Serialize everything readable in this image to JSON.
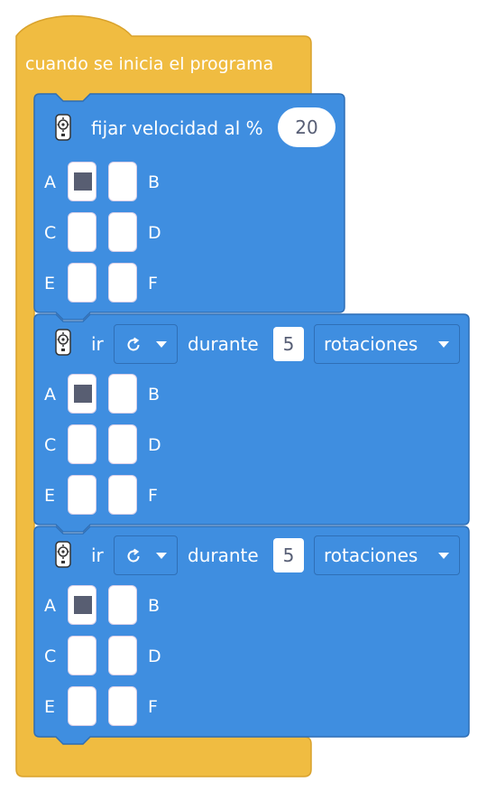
{
  "hat": {
    "label": "cuando se inicia el programa"
  },
  "blocks": [
    {
      "text_before": "fijar velocidad al %",
      "value": "20",
      "ports": [
        [
          "A",
          "B"
        ],
        [
          "C",
          "D"
        ],
        [
          "E",
          "F"
        ]
      ],
      "selected_port": "A"
    },
    {
      "text_before": "ir",
      "direction_icon": "rotate-cw-icon",
      "text_middle": "durante",
      "value": "5",
      "unit": "rotaciones",
      "ports": [
        [
          "A",
          "B"
        ],
        [
          "C",
          "D"
        ],
        [
          "E",
          "F"
        ]
      ],
      "selected_port": "A"
    },
    {
      "text_before": "ir",
      "direction_icon": "rotate-cw-icon",
      "text_middle": "durante",
      "value": "5",
      "unit": "rotaciones",
      "ports": [
        [
          "A",
          "B"
        ],
        [
          "C",
          "D"
        ],
        [
          "E",
          "F"
        ]
      ],
      "selected_port": "A"
    }
  ],
  "colors": {
    "hat": "#f0bc41",
    "hat_border": "#d9a22c",
    "block": "#3f8ee0",
    "block_border": "#2f6fb6",
    "selected": "#585e72"
  }
}
